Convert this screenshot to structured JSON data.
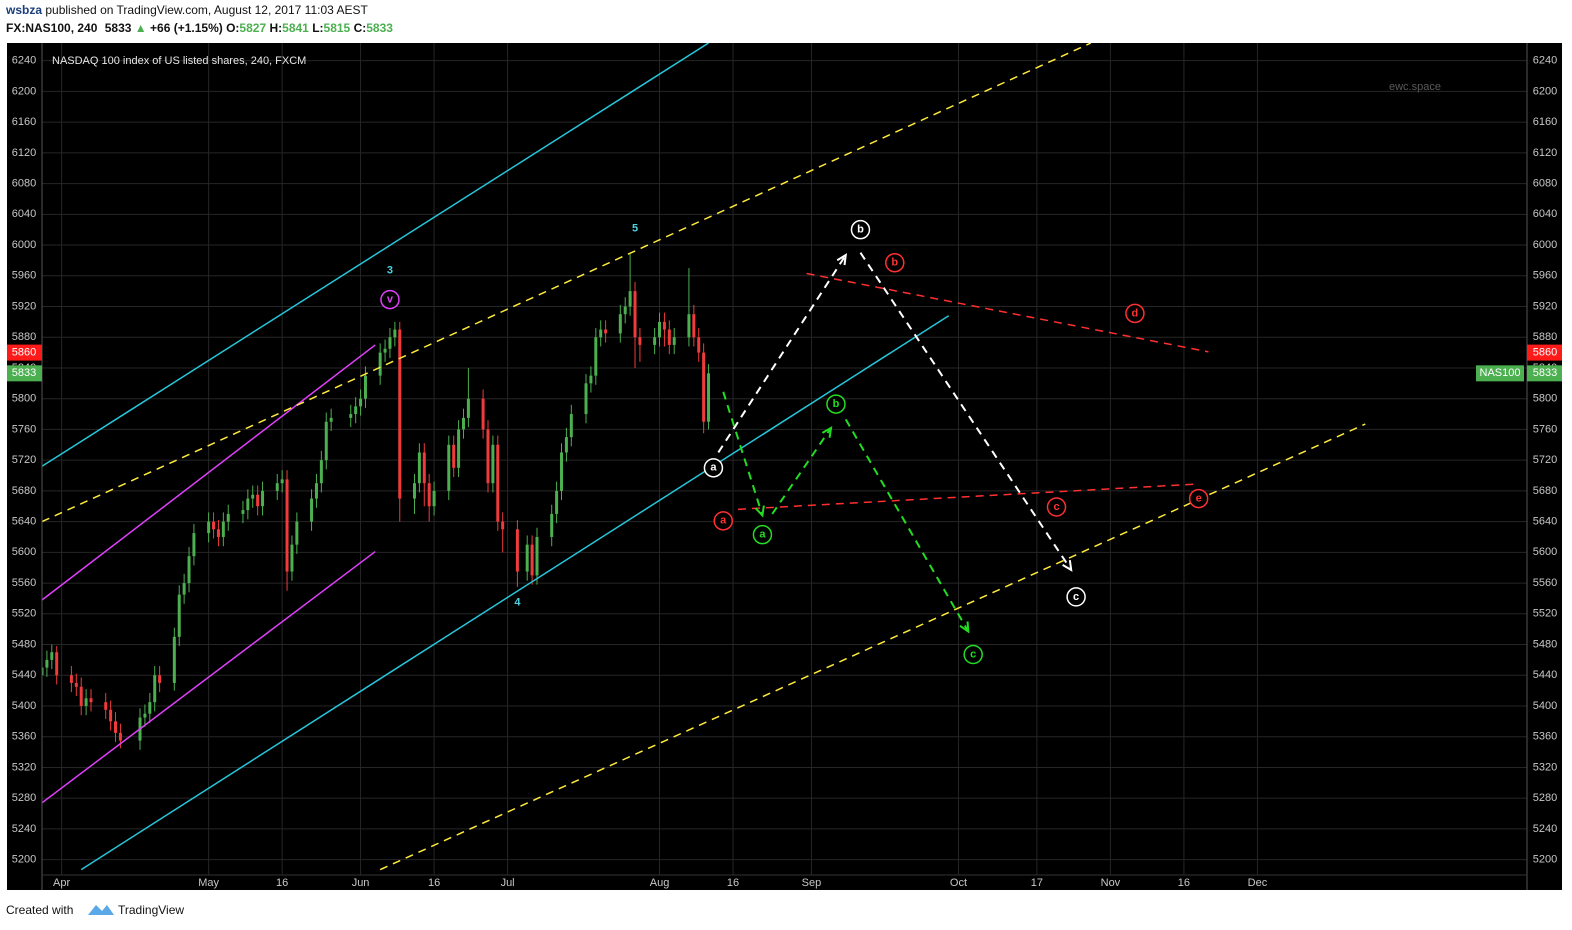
{
  "header": {
    "author": "wsbza",
    "published": "published on TradingView.com, August 12, 2017 11:03 AEST"
  },
  "quote": {
    "symbol": "FX:NAS100, 240",
    "price": "5833",
    "arrow": "▲",
    "change": "+66 (+1.15%)",
    "fields": [
      {
        "label": "O:",
        "value": "5827"
      },
      {
        "label": "H:",
        "value": "5841"
      },
      {
        "label": "L:",
        "value": "5815"
      },
      {
        "label": "C:",
        "value": "5833"
      }
    ]
  },
  "footer": {
    "created": "Created with",
    "brand": "TradingView"
  },
  "chart_data": {
    "type": "candlestick",
    "title": "NASDAQ 100 index of US listed shares, 240, FXCM",
    "watermark": "ewc.space",
    "name": "NAS100",
    "up_color": "#4caf50",
    "down_color": "#ef3b3b",
    "grid": true,
    "xlim": [
      "03-28",
      "01-25"
    ],
    "ylim": [
      5180,
      6263
    ],
    "xticks": [
      {
        "value": "04-01",
        "label": "Apr"
      },
      {
        "value": "05-01",
        "label": "May"
      },
      {
        "value": "05-16",
        "label": "16"
      },
      {
        "value": "06-01",
        "label": "Jun"
      },
      {
        "value": "06-16",
        "label": "16"
      },
      {
        "value": "07-01",
        "label": "Jul"
      },
      {
        "value": "08-01",
        "label": "Aug"
      },
      {
        "value": "08-16",
        "label": "16"
      },
      {
        "value": "09-01",
        "label": "Sep"
      },
      {
        "value": "10-01",
        "label": "Oct"
      },
      {
        "value": "10-17",
        "label": "17"
      },
      {
        "value": "11-01",
        "label": "Nov"
      },
      {
        "value": "11-16",
        "label": "16"
      },
      {
        "value": "12-01",
        "label": "Dec"
      }
    ],
    "yticks": [
      5200,
      5240,
      5280,
      5320,
      5360,
      5400,
      5440,
      5480,
      5520,
      5560,
      5600,
      5640,
      5680,
      5720,
      5760,
      5800,
      5840,
      5880,
      5920,
      5960,
      6000,
      6040,
      6080,
      6120,
      6160,
      6200,
      6240
    ],
    "x": [
      "03-28",
      "03-29",
      "03-30",
      "03-31",
      "04-03",
      "04-04",
      "04-05",
      "04-06",
      "04-07",
      "04-10",
      "04-11",
      "04-12",
      "04-13",
      "04-17",
      "04-18",
      "04-19",
      "04-20",
      "04-21",
      "04-24",
      "04-25",
      "04-26",
      "04-27",
      "04-28",
      "05-01",
      "05-02",
      "05-03",
      "05-04",
      "05-05",
      "05-08",
      "05-09",
      "05-10",
      "05-11",
      "05-12",
      "05-15",
      "05-16",
      "05-17",
      "05-18",
      "05-19",
      "05-22",
      "05-23",
      "05-24",
      "05-25",
      "05-26",
      "05-30",
      "05-31",
      "06-01",
      "06-02",
      "06-05",
      "06-06",
      "06-07",
      "06-08",
      "06-09",
      "06-12",
      "06-13",
      "06-14",
      "06-15",
      "06-16",
      "06-19",
      "06-20",
      "06-21",
      "06-22",
      "06-23",
      "06-26",
      "06-27",
      "06-28",
      "06-29",
      "06-30",
      "07-03",
      "07-05",
      "07-06",
      "07-07",
      "07-10",
      "07-11",
      "07-12",
      "07-13",
      "07-14",
      "07-17",
      "07-18",
      "07-19",
      "07-20",
      "07-21",
      "07-24",
      "07-25",
      "07-26",
      "07-27",
      "07-28",
      "07-31",
      "08-01",
      "08-02",
      "08-03",
      "08-04",
      "08-07",
      "08-08",
      "08-09",
      "08-10",
      "08-11"
    ],
    "ohlc": [
      [
        5440,
        5462,
        5428,
        5450
      ],
      [
        5450,
        5472,
        5438,
        5460
      ],
      [
        5460,
        5480,
        5448,
        5470
      ],
      [
        5470,
        5478,
        5428,
        5440
      ],
      [
        5440,
        5452,
        5418,
        5430
      ],
      [
        5430,
        5442,
        5413,
        5425
      ],
      [
        5425,
        5437,
        5388,
        5400
      ],
      [
        5400,
        5422,
        5388,
        5410
      ],
      [
        5410,
        5422,
        5393,
        5405
      ],
      [
        5405,
        5417,
        5383,
        5395
      ],
      [
        5395,
        5407,
        5368,
        5380
      ],
      [
        5380,
        5392,
        5353,
        5365
      ],
      [
        5365,
        5377,
        5345,
        5355
      ],
      [
        5355,
        5397,
        5343,
        5385
      ],
      [
        5385,
        5402,
        5373,
        5390
      ],
      [
        5390,
        5417,
        5378,
        5405
      ],
      [
        5405,
        5452,
        5393,
        5440
      ],
      [
        5440,
        5452,
        5418,
        5430
      ],
      [
        5430,
        5502,
        5420,
        5490
      ],
      [
        5490,
        5557,
        5478,
        5545
      ],
      [
        5545,
        5572,
        5533,
        5560
      ],
      [
        5560,
        5607,
        5548,
        5595
      ],
      [
        5595,
        5637,
        5583,
        5625
      ],
      [
        5625,
        5652,
        5613,
        5640
      ],
      [
        5640,
        5652,
        5618,
        5630
      ],
      [
        5630,
        5642,
        5608,
        5620
      ],
      [
        5620,
        5652,
        5608,
        5640
      ],
      [
        5640,
        5662,
        5628,
        5650
      ],
      [
        5650,
        5667,
        5638,
        5655
      ],
      [
        5655,
        5682,
        5643,
        5670
      ],
      [
        5670,
        5687,
        5658,
        5675
      ],
      [
        5675,
        5687,
        5648,
        5660
      ],
      [
        5660,
        5692,
        5648,
        5680
      ],
      [
        5680,
        5702,
        5668,
        5690
      ],
      [
        5690,
        5707,
        5678,
        5695
      ],
      [
        5695,
        5707,
        5550,
        5575
      ],
      [
        5575,
        5622,
        5563,
        5610
      ],
      [
        5610,
        5652,
        5598,
        5640
      ],
      [
        5640,
        5682,
        5628,
        5670
      ],
      [
        5670,
        5702,
        5658,
        5690
      ],
      [
        5690,
        5732,
        5678,
        5720
      ],
      [
        5720,
        5782,
        5708,
        5770
      ],
      [
        5770,
        5787,
        5758,
        5775
      ],
      [
        5775,
        5792,
        5763,
        5780
      ],
      [
        5780,
        5802,
        5768,
        5790
      ],
      [
        5790,
        5812,
        5778,
        5800
      ],
      [
        5800,
        5842,
        5788,
        5830
      ],
      [
        5830,
        5872,
        5818,
        5860
      ],
      [
        5860,
        5877,
        5848,
        5865
      ],
      [
        5865,
        5892,
        5853,
        5880
      ],
      [
        5880,
        5900,
        5868,
        5890
      ],
      [
        5890,
        5900,
        5640,
        5670
      ],
      [
        5670,
        5702,
        5650,
        5690
      ],
      [
        5690,
        5742,
        5678,
        5730
      ],
      [
        5730,
        5742,
        5660,
        5690
      ],
      [
        5690,
        5702,
        5640,
        5660
      ],
      [
        5660,
        5692,
        5648,
        5680
      ],
      [
        5680,
        5752,
        5668,
        5740
      ],
      [
        5740,
        5752,
        5698,
        5710
      ],
      [
        5710,
        5772,
        5698,
        5760
      ],
      [
        5760,
        5787,
        5748,
        5775
      ],
      [
        5775,
        5840,
        5763,
        5800
      ],
      [
        5800,
        5812,
        5748,
        5760
      ],
      [
        5760,
        5772,
        5678,
        5690
      ],
      [
        5690,
        5752,
        5678,
        5740
      ],
      [
        5740,
        5752,
        5628,
        5640
      ],
      [
        5640,
        5652,
        5600,
        5630
      ],
      [
        5630,
        5642,
        5555,
        5575
      ],
      [
        5575,
        5622,
        5563,
        5610
      ],
      [
        5610,
        5622,
        5558,
        5570
      ],
      [
        5570,
        5632,
        5558,
        5620
      ],
      [
        5620,
        5662,
        5608,
        5650
      ],
      [
        5650,
        5692,
        5638,
        5680
      ],
      [
        5680,
        5742,
        5668,
        5730
      ],
      [
        5730,
        5762,
        5718,
        5750
      ],
      [
        5750,
        5792,
        5738,
        5780
      ],
      [
        5780,
        5832,
        5768,
        5820
      ],
      [
        5820,
        5842,
        5808,
        5830
      ],
      [
        5830,
        5892,
        5818,
        5880
      ],
      [
        5880,
        5902,
        5868,
        5890
      ],
      [
        5890,
        5902,
        5873,
        5885
      ],
      [
        5885,
        5922,
        5873,
        5910
      ],
      [
        5910,
        5932,
        5898,
        5920
      ],
      [
        5920,
        5990,
        5908,
        5940
      ],
      [
        5940,
        5952,
        5840,
        5880
      ],
      [
        5880,
        5892,
        5848,
        5870
      ],
      [
        5870,
        5892,
        5858,
        5880
      ],
      [
        5880,
        5912,
        5868,
        5900
      ],
      [
        5900,
        5912,
        5868,
        5890
      ],
      [
        5890,
        5902,
        5858,
        5870
      ],
      [
        5870,
        5892,
        5858,
        5880
      ],
      [
        5880,
        5970,
        5868,
        5910
      ],
      [
        5910,
        5922,
        5868,
        5880
      ],
      [
        5880,
        5892,
        5848,
        5860
      ],
      [
        5860,
        5872,
        5755,
        5770
      ],
      [
        5770,
        5845,
        5760,
        5833
      ]
    ],
    "price_labels": [
      {
        "value": 5860,
        "color": "#ff1a1a"
      },
      {
        "value": 5833,
        "color": "#4caf50"
      }
    ],
    "lines": [
      {
        "color": "#26c6da",
        "dashed": false,
        "points": [
          [
            "03-28",
            5712
          ],
          [
            "08-11",
            6263
          ]
        ]
      },
      {
        "color": "#26c6da",
        "dashed": false,
        "points": [
          [
            "04-05",
            5187
          ],
          [
            "09-29",
            5908
          ]
        ]
      },
      {
        "color": "#e040fb",
        "dashed": false,
        "points": [
          [
            "03-28",
            5538
          ],
          [
            "06-04",
            5870
          ]
        ]
      },
      {
        "color": "#e040fb",
        "dashed": false,
        "points": [
          [
            "03-28",
            5274
          ],
          [
            "06-04",
            5601
          ]
        ]
      },
      {
        "color": "#ffeb3b",
        "dashed": true,
        "points": [
          [
            "03-28",
            5640
          ],
          [
            "10-28",
            6263
          ]
        ]
      },
      {
        "color": "#ffeb3b",
        "dashed": true,
        "points": [
          [
            "06-05",
            5187
          ],
          [
            "12-23",
            5767
          ]
        ]
      },
      {
        "color": "#ff3030",
        "dashed": true,
        "points": [
          [
            "08-31",
            5963
          ],
          [
            "11-21",
            5861
          ]
        ]
      },
      {
        "color": "#ff3030",
        "dashed": true,
        "points": [
          [
            "08-17",
            5656
          ],
          [
            "11-19",
            5689
          ]
        ]
      }
    ],
    "arrows": [
      {
        "color": "#ffffff",
        "points": [
          [
            "08-13",
            5730
          ],
          [
            "09-08",
            5987
          ]
        ]
      },
      {
        "color": "#ffffff",
        "points": [
          [
            "09-11",
            5990
          ],
          [
            "10-24",
            5577
          ]
        ]
      },
      {
        "color": "#22dd22",
        "points": [
          [
            "08-14",
            5809
          ],
          [
            "08-22",
            5648
          ]
        ]
      },
      {
        "color": "#22dd22",
        "points": [
          [
            "08-24",
            5650
          ],
          [
            "09-05",
            5762
          ]
        ]
      },
      {
        "color": "#22dd22",
        "points": [
          [
            "09-08",
            5773
          ],
          [
            "10-03",
            5497
          ]
        ]
      }
    ],
    "labels": [
      {
        "text": "3",
        "x": "06-07",
        "y": 5968,
        "color": "#4dd0e1",
        "circled": false
      },
      {
        "text": "5",
        "x": "07-27",
        "y": 6023,
        "color": "#4dd0e1",
        "circled": false
      },
      {
        "text": "4",
        "x": "07-03",
        "y": 5536,
        "color": "#4dd0e1",
        "circled": false
      },
      {
        "text": "v",
        "x": "06-07",
        "y": 5929,
        "color": "#e040fb",
        "circled": true
      },
      {
        "text": "a",
        "x": "08-12",
        "y": 5710,
        "color": "#ffffff",
        "circled": true
      },
      {
        "text": "b",
        "x": "09-11",
        "y": 6020,
        "color": "#ffffff",
        "circled": true
      },
      {
        "text": "c",
        "x": "10-25",
        "y": 5542,
        "color": "#ffffff",
        "circled": true
      },
      {
        "text": "a",
        "x": "08-14",
        "y": 5641,
        "color": "#ff3030",
        "circled": true
      },
      {
        "text": "b",
        "x": "09-18",
        "y": 5977,
        "color": "#ff3030",
        "circled": true
      },
      {
        "text": "c",
        "x": "10-21",
        "y": 5659,
        "color": "#ff3030",
        "circled": true
      },
      {
        "text": "d",
        "x": "11-06",
        "y": 5911,
        "color": "#ff3030",
        "circled": true
      },
      {
        "text": "e",
        "x": "11-19",
        "y": 5670,
        "color": "#ff3030",
        "circled": true
      },
      {
        "text": "a",
        "x": "08-22",
        "y": 5623,
        "color": "#22dd22",
        "circled": true
      },
      {
        "text": "b",
        "x": "09-06",
        "y": 5793,
        "color": "#22dd22",
        "circled": true
      },
      {
        "text": "c",
        "x": "10-04",
        "y": 5467,
        "color": "#22dd22",
        "circled": true
      }
    ]
  }
}
